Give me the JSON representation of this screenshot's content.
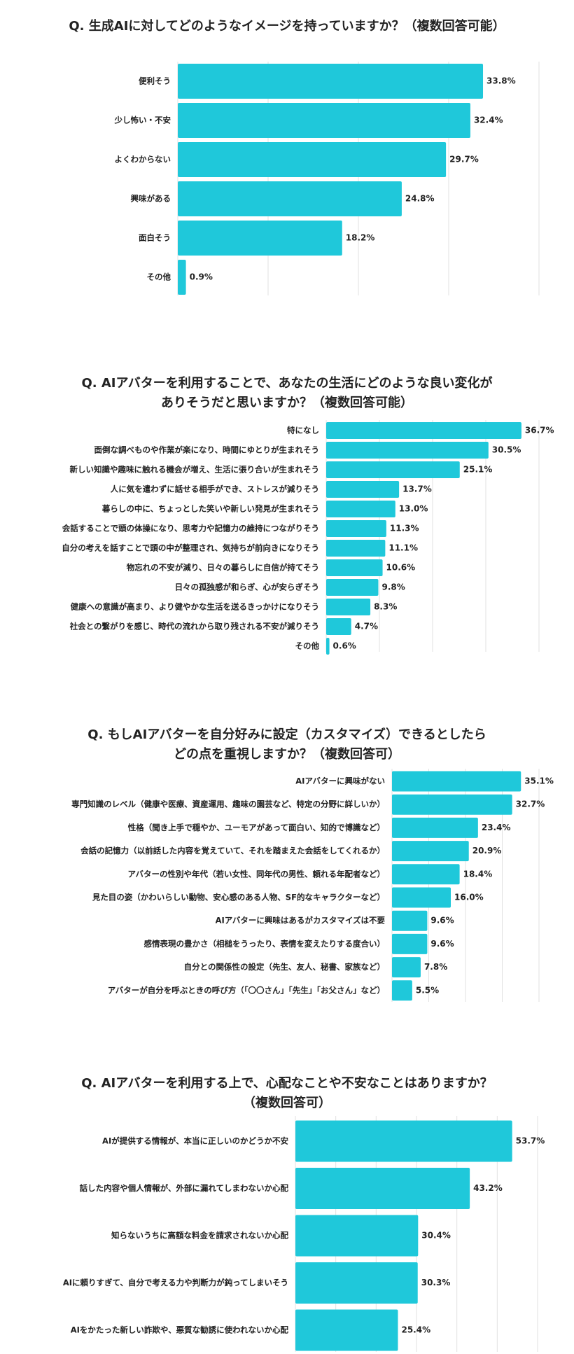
{
  "chart_data": [
    {
      "type": "bar",
      "orientation": "horizontal",
      "title": [
        "Q. 生成AIに対してどのようなイメージを持っていますか？（複数回答可能）"
      ],
      "categories": [
        "便利そう",
        "少し怖い・不安",
        "よくわからない",
        "興味がある",
        "面白そう",
        "その他"
      ],
      "values": [
        33.8,
        32.4,
        29.7,
        24.8,
        18.2,
        0.9
      ],
      "value_labels": [
        "33.8%",
        "32.4%",
        "29.7%",
        "24.8%",
        "18.2%",
        "0.9%"
      ],
      "color": "#1fc8da",
      "xlim": [
        0,
        40
      ],
      "xticks": [
        0,
        10,
        20,
        30,
        40
      ],
      "grid": true
    },
    {
      "type": "bar",
      "orientation": "horizontal",
      "title": [
        "Q. AIアバターを利用することで、あなたの生活にどのような良い変化が",
        "ありそうだと思いますか？（複数回答可能）"
      ],
      "categories": [
        "特になし",
        "面倒な調べものや作業が楽になり、時間にゆとりが生まれそう",
        "新しい知識や趣味に触れる機会が増え、生活に張り合いが生まれそう",
        "人に気を遣わずに話せる相手ができ、ストレスが減りそう",
        "暮らしの中に、ちょっとした笑いや新しい発見が生まれそう",
        "会話することで頭の体操になり、思考力や記憶力の維持につながりそう",
        "自分の考えを話すことで頭の中が整理され、気持ちが前向きになりそう",
        "物忘れの不安が減り、日々の暮らしに自信が持てそう",
        "日々の孤独感が和らぎ、心が安らぎそう",
        "健康への意識が高まり、より健やかな生活を送るきっかけになりそう",
        "社会との繋がりを感じ、時代の流れから取り残される不安が減りそう",
        "その他"
      ],
      "values": [
        36.7,
        30.5,
        25.1,
        13.7,
        13.0,
        11.3,
        11.1,
        10.6,
        9.8,
        8.3,
        4.7,
        0.6
      ],
      "value_labels": [
        "36.7%",
        "30.5%",
        "25.1%",
        "13.7%",
        "13.0%",
        "11.3%",
        "11.1%",
        "10.6%",
        "9.8%",
        "8.3%",
        "4.7%",
        "0.6%"
      ],
      "color": "#1fc8da",
      "xlim": [
        0,
        40
      ],
      "xticks": [
        0,
        10,
        20,
        30,
        40
      ],
      "grid": true
    },
    {
      "type": "bar",
      "orientation": "horizontal",
      "title": [
        "Q. もしAIアバターを自分好みに設定（カスタマイズ）できるとしたら",
        "どの点を重視しますか？（複数回答可）"
      ],
      "categories": [
        "AIアバターに興味がない",
        "専門知識のレベル（健康や医療、資産運用、趣味の園芸など、特定の分野に詳しいか）",
        "性格（聞き上手で穏やか、ユーモアがあって面白い、知的で博識など）",
        "会話の記憶力（以前話した内容を覚えていて、それを踏まえた会話をしてくれるか）",
        "アバターの性別や年代（若い女性、同年代の男性、頼れる年配者など）",
        "見た目の姿（かわいらしい動物、安心感のある人物、SF的なキャラクターなど）",
        "AIアバターに興味はあるがカスタマイズは不要",
        "感情表現の豊かさ（相槌をうったり、表情を変えたりする度合い）",
        "自分との関係性の設定（先生、友人、秘書、家族など）",
        "アバターが自分を呼ぶときの呼び方（「〇〇さん」「先生」「お父さん」など）"
      ],
      "values": [
        35.1,
        32.7,
        23.4,
        20.9,
        18.4,
        16.0,
        9.6,
        9.6,
        7.8,
        5.5
      ],
      "value_labels": [
        "35.1%",
        "32.7%",
        "23.4%",
        "20.9%",
        "18.4%",
        "16.0%",
        "9.6%",
        "9.6%",
        "7.8%",
        "5.5%"
      ],
      "color": "#1fc8da",
      "xlim": [
        0,
        40
      ],
      "xticks": [
        0,
        10,
        20,
        30,
        40
      ],
      "grid": true
    },
    {
      "type": "bar",
      "orientation": "horizontal",
      "title": [
        "Q. AIアバターを利用する上で、心配なことや不安なことはありますか？",
        "（複数回答可）"
      ],
      "categories": [
        "AIが提供する情報が、本当に正しいのかどうか不安",
        "話した内容や個人情報が、外部に漏れてしまわないか心配",
        "知らないうちに高額な料金を請求されないか心配",
        "AIに頼りすぎて、自分で考える力や判断力が鈍ってしまいそう",
        "AIをかたった新しい詐欺や、悪質な勧誘に使われないか心配"
      ],
      "values": [
        53.7,
        43.2,
        30.4,
        30.3,
        25.4
      ],
      "value_labels": [
        "53.7%",
        "43.2%",
        "30.4%",
        "30.3%",
        "25.4%"
      ],
      "color": "#1fc8da",
      "xlim": [
        0,
        60
      ],
      "xticks": [
        0,
        10,
        20,
        30,
        40,
        50,
        60
      ],
      "grid": true
    }
  ]
}
